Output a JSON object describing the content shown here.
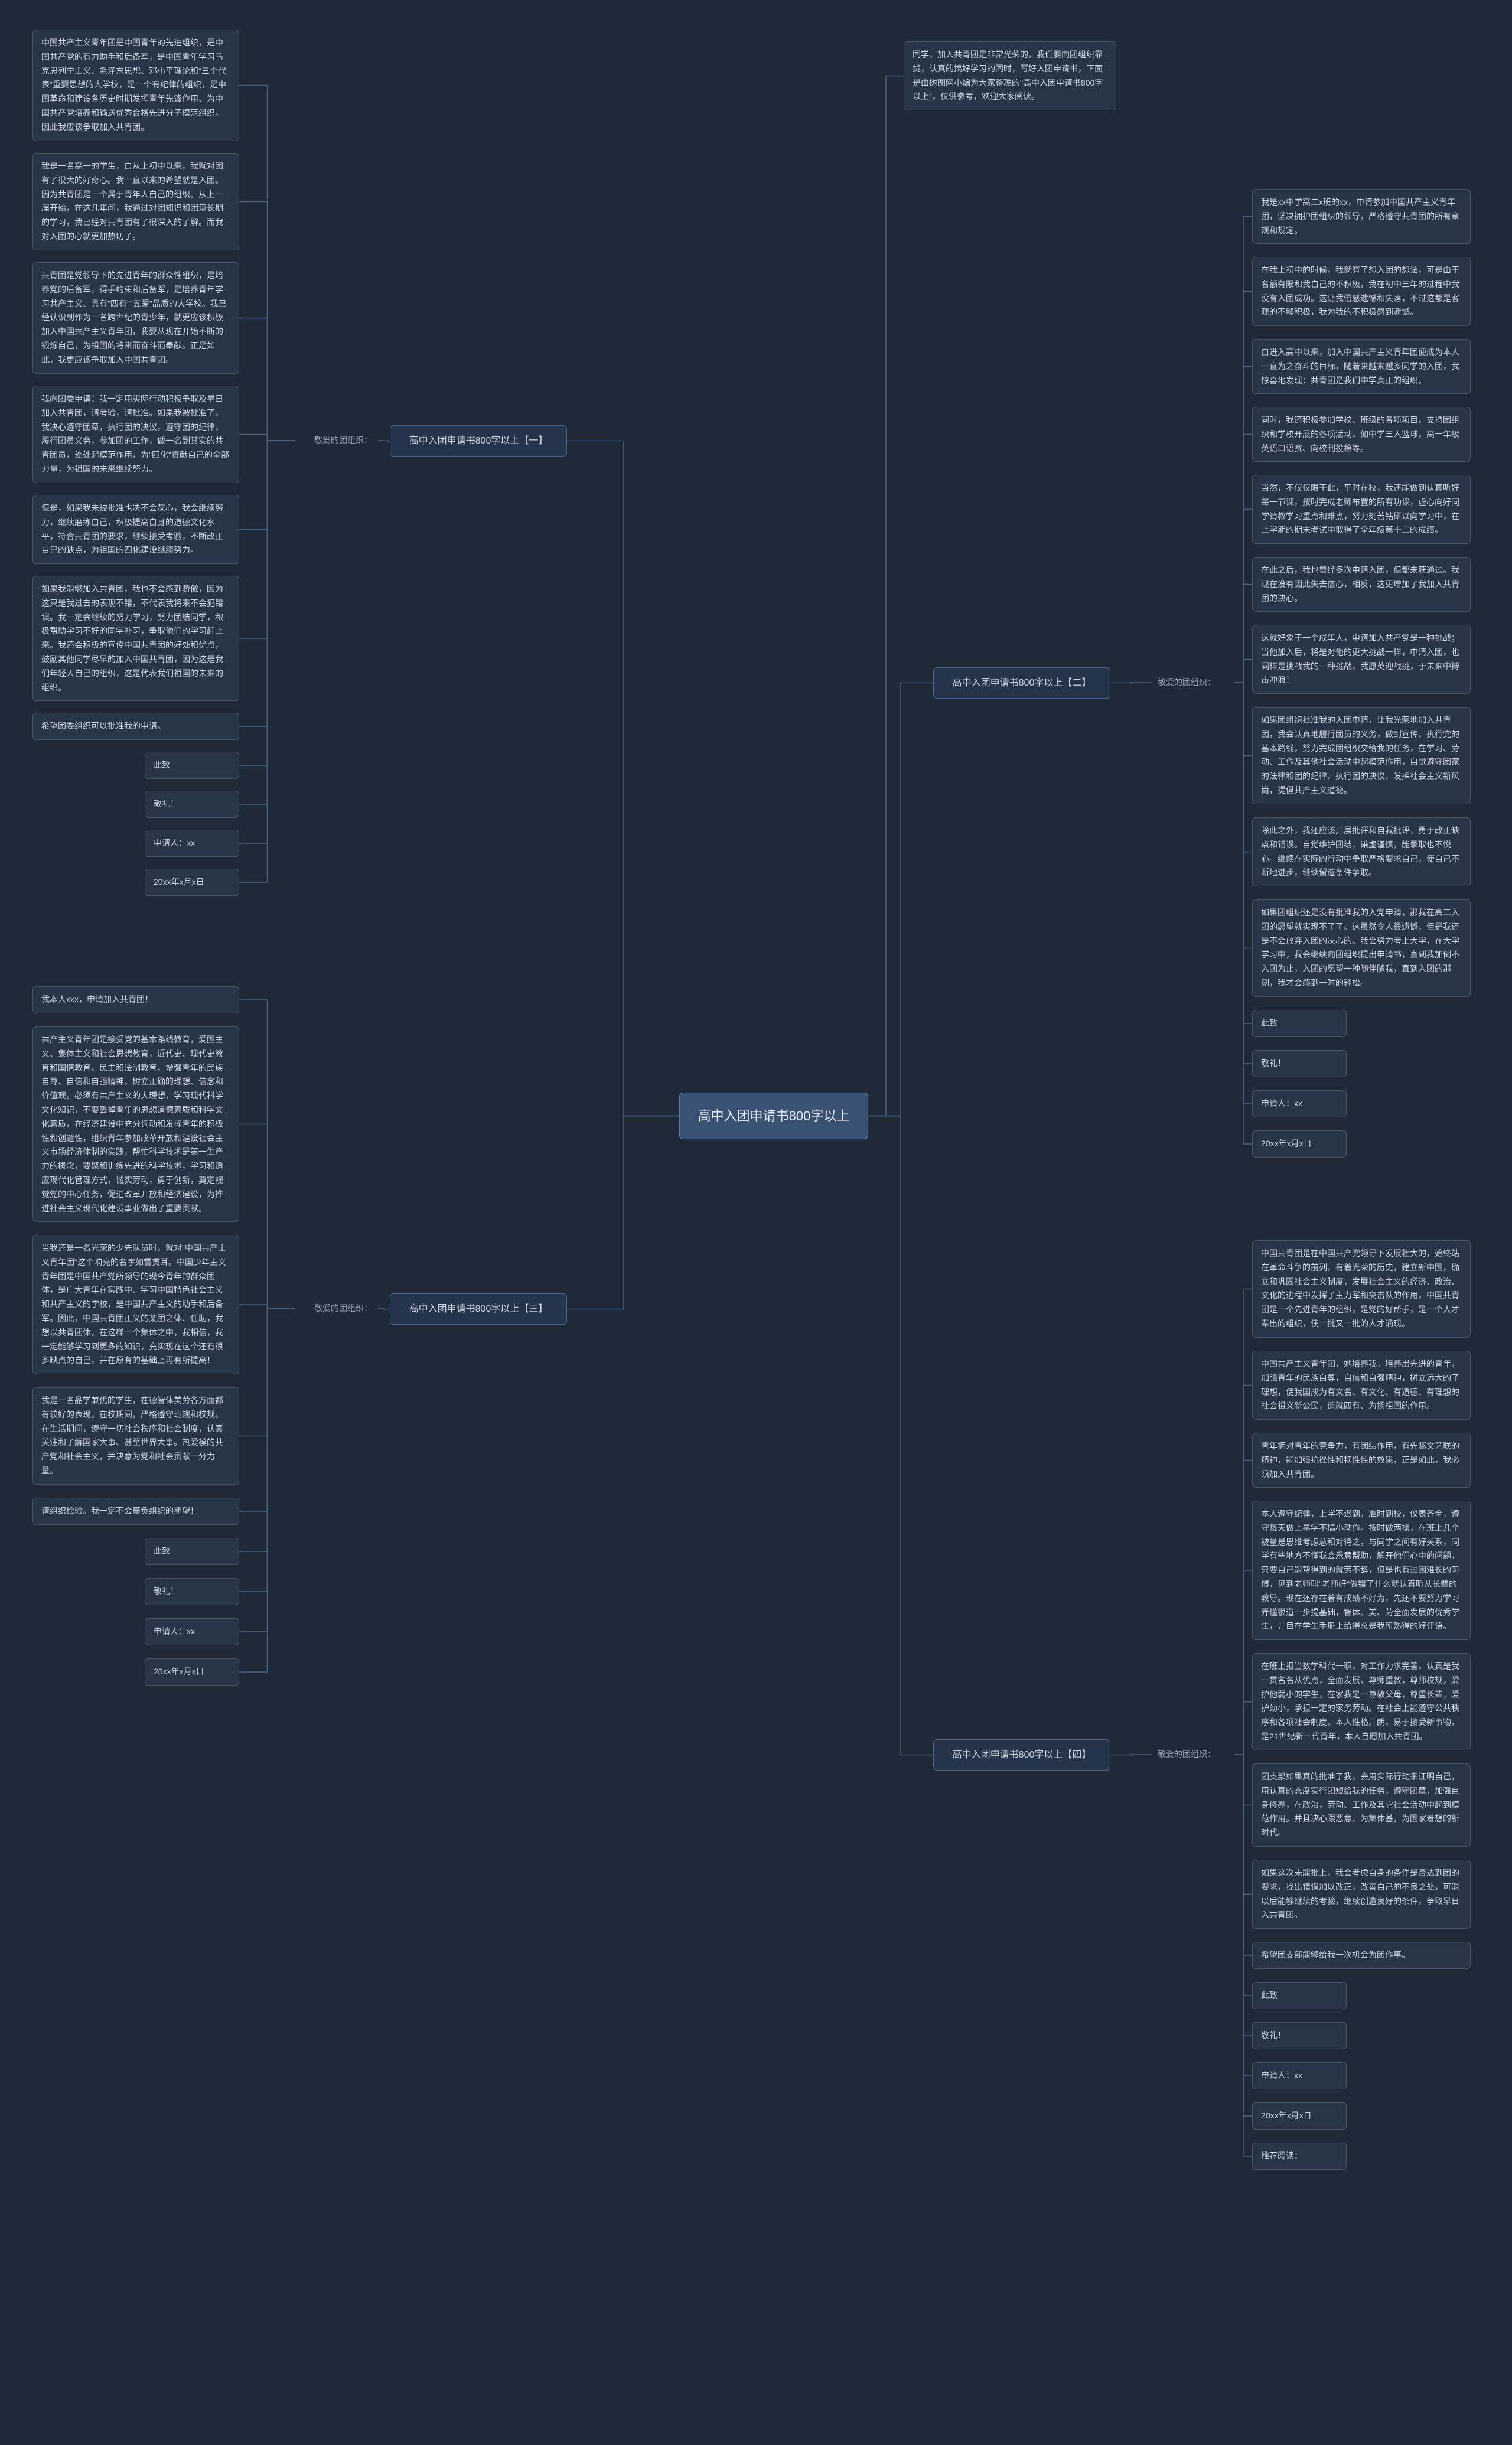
{
  "colors": {
    "background": "#1f2937",
    "node_bg": "#283447",
    "node_border": "#475569",
    "section_bg": "#25344a",
    "section_border": "#496386",
    "root_bg": "#3b5173",
    "root_border": "#5b7aa5",
    "text": "#cbd5e1",
    "label_text": "#94a3b8",
    "line": "#496386"
  },
  "root": "高中入团申请书800字以上",
  "intro": "同学，加入共青团是非常光荣的，我们要向团组织靠拢，认真的搞好学习的同时，写好入团申请书，下面是由树图网小编为大家整理的\"高中入团申请书800字以上\"，仅供参考，欢迎大家阅读。",
  "sections": [
    {
      "title": "高中入团申请书800字以上【一】",
      "label": "敬爱的团组织：",
      "nodes": [
        "中国共产主义青年团是中国青年的先进组织，是中国共产党的有力助手和后备军，是中国青年学习马克思列宁主义、毛泽东思想、邓小平理论和\"三个代表\"重要思想的大学校，是一个有纪律的组织，是中国革命和建设各历史时期发挥青年先锋作用、为中国共产党培养和输送优秀合格先进分子模范组织。因此我应该争取加入共青团。",
        "我是一名高一的学生，自从上初中以来，我就对团有了很大的好奇心。我一直以来的希望就是入团。因为共青团是一个属于青年人自己的组织。从上一届开始，在这几年间，我通过对团知识和团章长期的学习，我已经对共青团有了很深入的了解。而我对入团的心就更加热切了。",
        "共青团是党领导下的先进青年的群众性组织，是培养党的后备军，得手约束和后备军，是培养青年学习共产主义、具有\"四有\"\"五爱\"品质的大学校。我已经认识到作为一名跨世纪的青少年，就更应该积极加入中国共产主义青年团，我要从现在开始不断的锻炼自己，为祖国的将来而奋斗而奉献。正是如此，我更应该争取加入中国共青团。",
        "我向团委申请：我一定用实际行动积极争取及早日加入共青团，请考验，请批准。如果我被批准了，我决心遵守团章，执行团的决议，遵守团的纪律，履行团员义务，参加团的工作，做一名副其实的共青团员，处处起模范作用，为\"四化\"贡献自己的全部力量，为祖国的未来继续努力。",
        "但是，如果我未被批准也决不会灰心，我会继续努力，继续磨练自己，积极提高自身的道德文化水平，符合共青团的要求，继续接受考验，不断改正自己的缺点，为祖国的四化建设继续努力。",
        "如果我能够加入共青团，我也不会感到骄傲，因为这只是我过去的表现不错，不代表我将来不会犯错误。我一定会继续的努力学习，努力团结同学，积极帮助学习不好的同学补习，争取他们的学习赶上来。我还会积极的宣传中国共青团的好处和优点，鼓励其他同学尽早的加入中国共青团，因为这是我们年轻人自己的组织，这是代表我们祖国的未来的组织。",
        "希望团委组织可以批准我的申请。",
        "此致",
        "敬礼！",
        "申请人：xx",
        "20xx年x月x日"
      ]
    },
    {
      "title": "高中入团申请书800字以上【二】",
      "label": "敬爱的团组织：",
      "nodes": [
        "我是xx中学高二x班的xx，申请参加中国共产主义青年团，坚决拥护团组织的领导，严格遵守共青团的所有章规和规定。",
        "在我上初中的时候，我就有了想入团的想法，可是由于名额有限和我自己的不积极，我在初中三年的过程中我没有入团成功。这让我倍感遗憾和失落，不过这都是客观的不够积极，我为我的不积极感到遗憾。",
        "自进入高中以来，加入中国共产主义青年团便成为本人一直为之奋斗的目标，随着来越来越多同学的入团，我惊喜地发现：共青团是我们中学真正的组织。",
        "同时，我还积极参加学校、班级的各项项目，支持团组织和学校开展的各项活动。如中学三人篮球，高一年级英语口语赛、向校刊投稿等。",
        "当然，不仅仅限于此，平时在校，我还能做到认真听好每一节课，按时完成老师布置的所有功课，虚心向好同学请教学习重点和难点，努力刻苦钻研以向学习中，在上学期的期末考试中取得了全年级第十二的成绩。",
        "在此之后，我也曾经多次申请入团，但都未获通过。我现在没有因此失去信心，相反，这更增加了我加入共青团的决心。",
        "这就好象于一个成年人，申请加入共产党是一种挑战；当他加入后，将是对他的更大挑战一样，申请入团，也同样是挑战我的一种挑战，我愿英迎战挑，于未来中搏击冲浪！",
        "如果团组织批准我的入团申请，让我光荣地加入共青团，我会认真地履行团员的义务，做到宣传、执行党的基本路线，努力完成团组织交给我的任务，在学习、劳动、工作及其他社会活动中起模范作用，自觉遵守团家的法律和团的纪律，执行团的决议，发挥社会主义新风尚，提倡共产主义道德。",
        "除此之外，我还应该开展批评和自我批评，勇于改正缺点和错误。自觉维护团结，谦虚谨慎，能录取也不悦心。继续在实际的行动中争取严格要求自己，使自己不断地进步，继续留造条件争取。",
        "如果团组织还是没有批准我的入党申请，那我在高二入团的愿望就实现不了了。这虽然令人很遗憾，但是我还是不会放弃入团的决心的。我会努力考上大学，在大学学习中，我会继续向团组织提出申请书，直到我加倒不入团为止，入团的愿望一种随伴随我，直到入团的那刻，我才会感到一时的轻松。",
        "此致",
        "敬礼！",
        "申请人：xx",
        "20xx年x月x日"
      ]
    },
    {
      "title": "高中入团申请书800字以上【三】",
      "label": "敬爱的团组织：",
      "nodes": [
        "我本人xxx，申请加入共青团！",
        "共产主义青年团是接受党的基本路线教育，爱国主义、集体主义和社会思想教育，近代史、现代史教育和国情教育，民主和法制教育，增强青年的民族自尊、自信和自强精神，树立正确的理想、信念和价值观，必须有共产主义的大理想，学习现代科学文化知识，不要丢掉青年的思想道德素质和科学文化素质，在经济建设中充分调动和发挥青年的积极性和创造性，组织青年参加改革开放和建设社会主义市场经济体制的实践，帮忙科学技术是第一生产力的概念，要聚和训练先进的科学技术，学习和适应现代化管理方式，诚实劳动，勇于创新，奠定视觉党的中心任务，促进改革开放和经济建设，为推进社会主义现代化建设事业做出了重要贡献。",
        "当我还是一名光荣的少先队员时，就对\"中国共产主义青年团\"这个响亮的名字如雷贯耳。中国少年主义青年团是中国共产党所领导的现今青年的群众团体，是广大青年在实践中、学习中国特色社会主义和共产主义的学校，是中国共产主义的助手和后备军。因此，中国共青团正义的某团之体、任助，我想以共青团体，在这样一个集体之中，我相信，我一定能够学习到更多的知识，充实现在这个还有很多缺点的自己，并在原有的基础上再有所提高！",
        "我是一名品学兼优的学生，在德智体美劳各方面都有较好的表现。在校期间，严格遵守班规和校规。在生活期间，遵守一切社会秩序和社会制度，认真关注和了解国家大事、甚至世界大事。热爱模的共产党和社会主义，并决意为党和社会贡献一分力量。",
        "请组织检验。我一定不会辜负组织的期望！",
        "此致",
        "敬礼！",
        "申请人：xx",
        "20xx年x月x日"
      ]
    },
    {
      "title": "高中入团申请书800字以上【四】",
      "label": "敬爱的团组织：",
      "nodes": [
        "中国共青团是在中国共产党领导下发展壮大的，始终站在革命斗争的前列，有着光荣的历史，建立新中国，确立和巩固社会主义制度，发展社会主义的经济、政治、文化的进程中发挥了主力军和突击队的作用，中国共青团是一个先进青年的组织，是党的好帮手，是一个人才辈出的组织，使一批又一批的人才涌现。",
        "中国共产主义青年团，她培养我，培养出先进的青年，加强青年的民族自尊，自信和自强精神，树立远大的了理想，使我国成为有文名、有文化、有道德、有理想的社会祖义新公民，造就四有、为扬祖国的作用。",
        "青年拥对青年的竞争力，有团结作用，有先驱文艺联的精神，能加强抗挫性和韧性性的效果，正是如此，我必须加入共青团。",
        "本人遵守纪律，上学不迟到，准时到校，仪表齐全，遵守每天做上早学不搞小动作。按时做两操，在班上几个被量是思维考虑总和对待之，与同学之间有好关系，同学有些地方不懂我会乐意帮助，解开他们心中的问题，只要自己能帮得到的就劳不辞，但是也有过困难长的习惯，见到老师叫\"老师好\"做错了什么就认真听从长辈的教导。现在还存在着有成绩不好为，先还不要努力学习弄懂很道一步提基础，智体、美、劳全面发展的优秀学生，并目在学生手册上给得总是我所熟得的好评语。",
        "在班上担当数学科代一职，对工作力求完善，认真是我一贯名名从优点，全面发展，尊师重教，尊师校规，爱护他弱小的学生，在家我是一尊敬父母，尊重长辈，爱护幼小，承担一定的家务劳动。在社会上能遵守公共秩序和各项社会制度。本人性格开朗，易于接受新事物，是21世纪新一代青年，本人自愿加入共青团。",
        "团支部如果真的批准了我，会用实际行动来证明自己，用认真的态度实行团短给我的任务，遵守团章，加强自身修养，在政治，劳动、工作及其它社会活动中起到模范作用。并且决心跟恶意、为集体基，为国家着想的新时代。",
        "如果这次未能批上，我会考虑自身的条件是否达到团的要求，找出错误加以改正，改善自己的不良之处，可能以后能够继续的考验，继续创造良好的条件，争取早日入共青团。",
        "希望团支部能够给我一次机会为团作事。",
        "此致",
        "敬礼！",
        "申请人：xx",
        "20xx年x月x日",
        "推荐阅读："
      ]
    }
  ]
}
